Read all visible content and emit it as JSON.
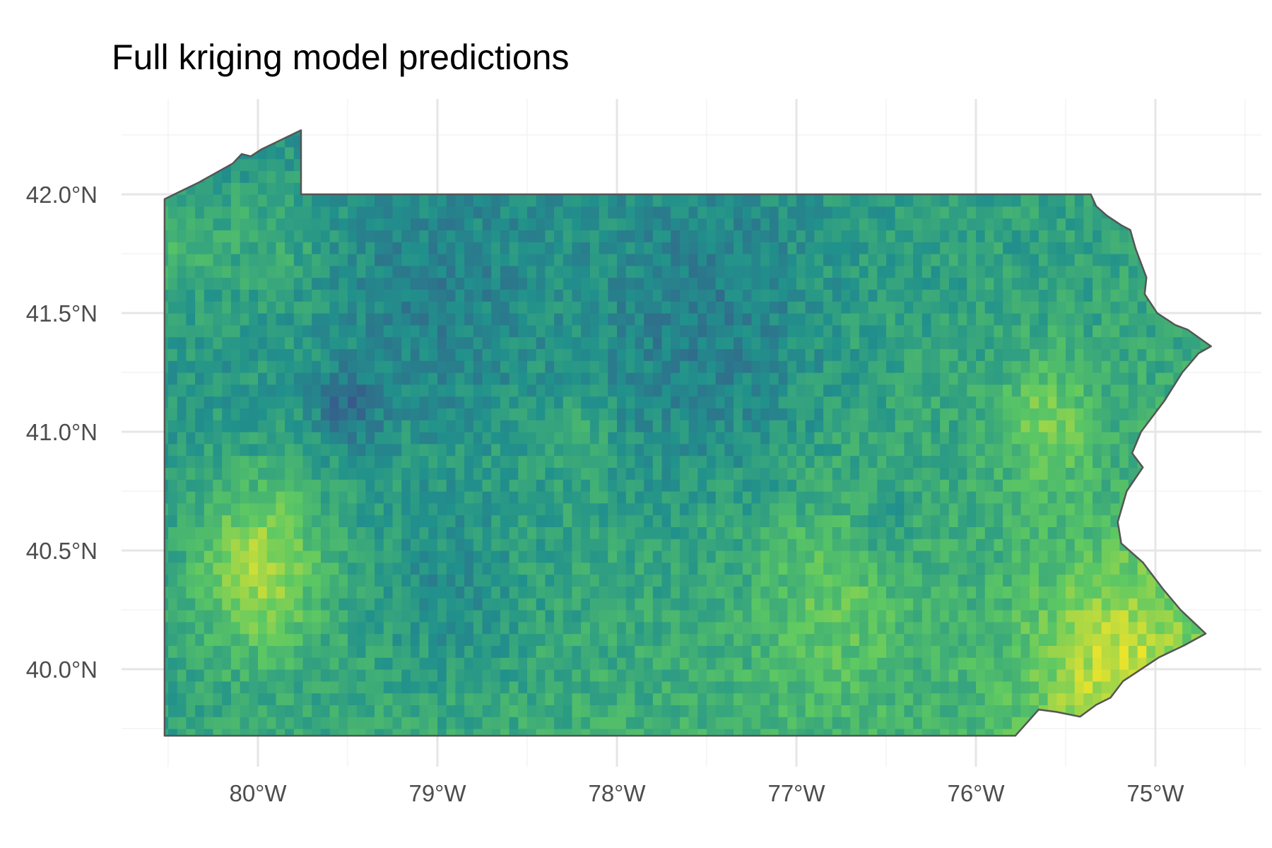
{
  "title": "Full kriging model predictions",
  "chart_data": {
    "type": "heatmap",
    "title": "Full kriging model predictions",
    "xlabel": "",
    "ylabel": "",
    "region": "Pennsylvania",
    "x_ticks": [
      {
        "value": -80,
        "label": "80°W"
      },
      {
        "value": -79,
        "label": "79°W"
      },
      {
        "value": -78,
        "label": "78°W"
      },
      {
        "value": -77,
        "label": "77°W"
      },
      {
        "value": -76,
        "label": "76°W"
      },
      {
        "value": -75,
        "label": "75°W"
      }
    ],
    "y_ticks": [
      {
        "value": 40.0,
        "label": "40.0°N"
      },
      {
        "value": 40.5,
        "label": "40.5°N"
      },
      {
        "value": 41.0,
        "label": "41.0°N"
      },
      {
        "value": 41.5,
        "label": "41.5°N"
      },
      {
        "value": 42.0,
        "label": "42.0°N"
      }
    ],
    "xlim": [
      -80.52,
      -74.69
    ],
    "ylim": [
      39.72,
      42.27
    ],
    "grid": true,
    "legend": "none",
    "colormap": "viridis",
    "color_range_shown": [
      "#3b528b",
      "#5ec962"
    ],
    "cell_size_deg": 0.05,
    "outline": [
      [
        -80.52,
        39.72
      ],
      [
        -80.52,
        41.98
      ],
      [
        -80.33,
        42.05
      ],
      [
        -80.14,
        42.13
      ],
      [
        -80.09,
        42.17
      ],
      [
        -80.04,
        42.16
      ],
      [
        -79.98,
        42.19
      ],
      [
        -79.76,
        42.27
      ],
      [
        -79.76,
        42.0
      ],
      [
        -75.36,
        42.0
      ],
      [
        -75.33,
        41.95
      ],
      [
        -75.27,
        41.91
      ],
      [
        -75.19,
        41.87
      ],
      [
        -75.14,
        41.85
      ],
      [
        -75.11,
        41.77
      ],
      [
        -75.05,
        41.65
      ],
      [
        -75.06,
        41.58
      ],
      [
        -74.99,
        41.5
      ],
      [
        -74.89,
        41.45
      ],
      [
        -74.82,
        41.43
      ],
      [
        -74.69,
        41.36
      ],
      [
        -74.76,
        41.33
      ],
      [
        -74.85,
        41.25
      ],
      [
        -74.95,
        41.13
      ],
      [
        -75.08,
        41.0
      ],
      [
        -75.13,
        40.91
      ],
      [
        -75.07,
        40.85
      ],
      [
        -75.16,
        40.75
      ],
      [
        -75.21,
        40.62
      ],
      [
        -75.19,
        40.53
      ],
      [
        -75.07,
        40.45
      ],
      [
        -74.96,
        40.34
      ],
      [
        -74.86,
        40.25
      ],
      [
        -74.72,
        40.15
      ],
      [
        -74.84,
        40.1
      ],
      [
        -74.98,
        40.05
      ],
      [
        -75.1,
        39.99
      ],
      [
        -75.18,
        39.95
      ],
      [
        -75.25,
        39.88
      ],
      [
        -75.33,
        39.85
      ],
      [
        -75.42,
        39.8
      ],
      [
        -75.55,
        39.82
      ],
      [
        -75.65,
        39.83
      ],
      [
        -75.78,
        39.72
      ],
      [
        -80.52,
        39.72
      ]
    ]
  }
}
